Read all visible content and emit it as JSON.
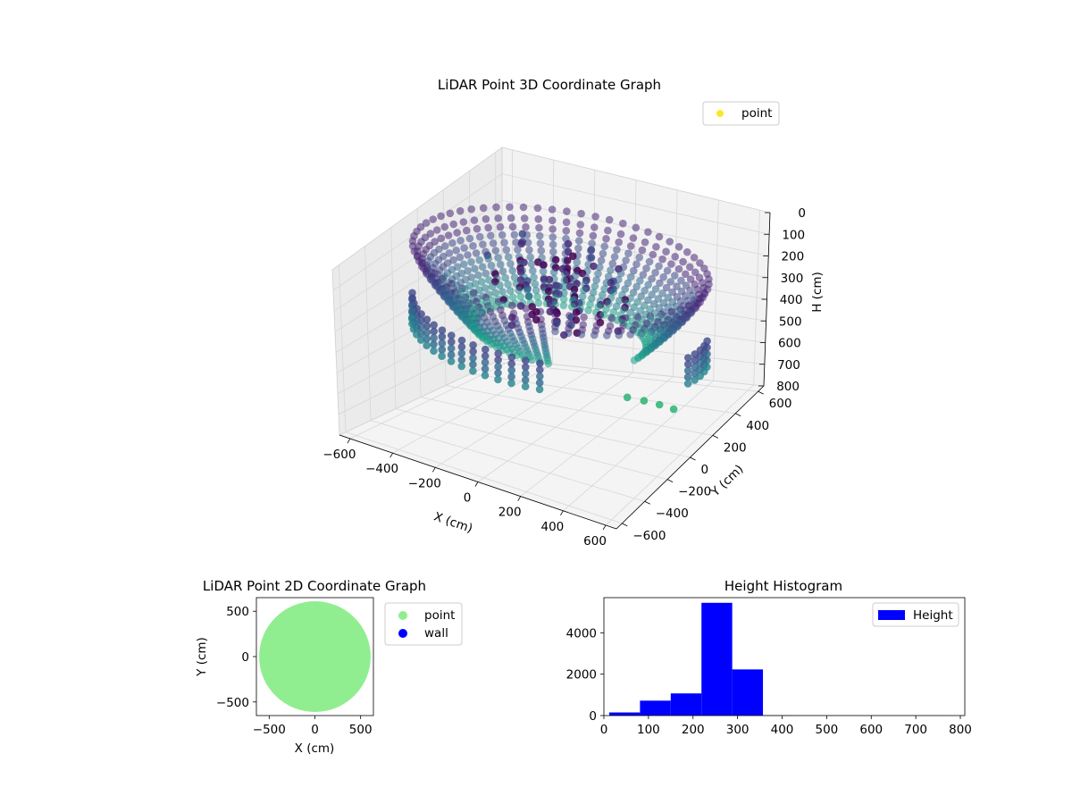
{
  "chart_data": [
    {
      "type": "scatter3d",
      "title": "LiDAR Point 3D Coordinate Graph",
      "xlabel": "X (cm)",
      "ylabel": "Y (cm)",
      "zlabel": "H (cm)",
      "xlim": [
        -650,
        650
      ],
      "ylim": [
        -650,
        650
      ],
      "zlim": [
        800,
        0
      ],
      "x_ticks": [
        "−600",
        "−400",
        "−200",
        "0",
        "200",
        "400",
        "600"
      ],
      "y_ticks": [
        "−600",
        "−400",
        "−200",
        "0",
        "200",
        "400",
        "600"
      ],
      "z_ticks": [
        "0",
        "100",
        "200",
        "300",
        "400",
        "500",
        "600",
        "700",
        "800"
      ],
      "z_inverted": true,
      "grid": true,
      "colormap": "viridis",
      "legend": {
        "placement": "top-right",
        "entries": [
          {
            "name": "point",
            "color": "#fde725"
          }
        ]
      },
      "point_cloud": {
        "shape": "ring of vertical scan columns with inner cluster",
        "outer_radius": 600,
        "inner_radius": 320,
        "height_range": [
          80,
          420
        ]
      }
    },
    {
      "type": "scatter",
      "title": "LiDAR Point 2D Coordinate Graph",
      "xlabel": "X (cm)",
      "ylabel": "Y (cm)",
      "xlim": [
        -640,
        640
      ],
      "ylim": [
        -650,
        650
      ],
      "x_ticks": [
        "−500",
        "0",
        "500"
      ],
      "y_ticks": [
        "−500",
        "0",
        "500"
      ],
      "series": [
        {
          "name": "point",
          "color": "#90ee90",
          "shape": "filled disc",
          "center": [
            0,
            0
          ],
          "radius": 610
        },
        {
          "name": "wall",
          "color": "#0000ff",
          "points": []
        }
      ],
      "legend": {
        "placement": "outside-right"
      }
    },
    {
      "type": "bar",
      "title": "Height Histogram",
      "xlim": [
        0,
        810
      ],
      "ylim": [
        0,
        5700
      ],
      "x_ticks": [
        "0",
        "100",
        "200",
        "300",
        "400",
        "500",
        "600",
        "700",
        "800"
      ],
      "y_ticks": [
        "0",
        "2000",
        "4000"
      ],
      "series": [
        {
          "name": "Height",
          "color": "#0000ff",
          "bins": [
            {
              "x0": 12,
              "x1": 81,
              "value": 150
            },
            {
              "x0": 81,
              "x1": 150,
              "value": 720
            },
            {
              "x0": 150,
              "x1": 219,
              "value": 1070
            },
            {
              "x0": 219,
              "x1": 288,
              "value": 5450
            },
            {
              "x0": 288,
              "x1": 357,
              "value": 2230
            },
            {
              "x0": 357,
              "x1": 426,
              "value": 10
            },
            {
              "x0": 426,
              "x1": 495,
              "value": 5
            },
            {
              "x0": 495,
              "x1": 564,
              "value": 5
            },
            {
              "x0": 564,
              "x1": 633,
              "value": 3
            },
            {
              "x0": 633,
              "x1": 702,
              "value": 3
            },
            {
              "x0": 702,
              "x1": 771,
              "value": 3
            }
          ]
        }
      ],
      "legend": {
        "placement": "top-right"
      }
    }
  ]
}
